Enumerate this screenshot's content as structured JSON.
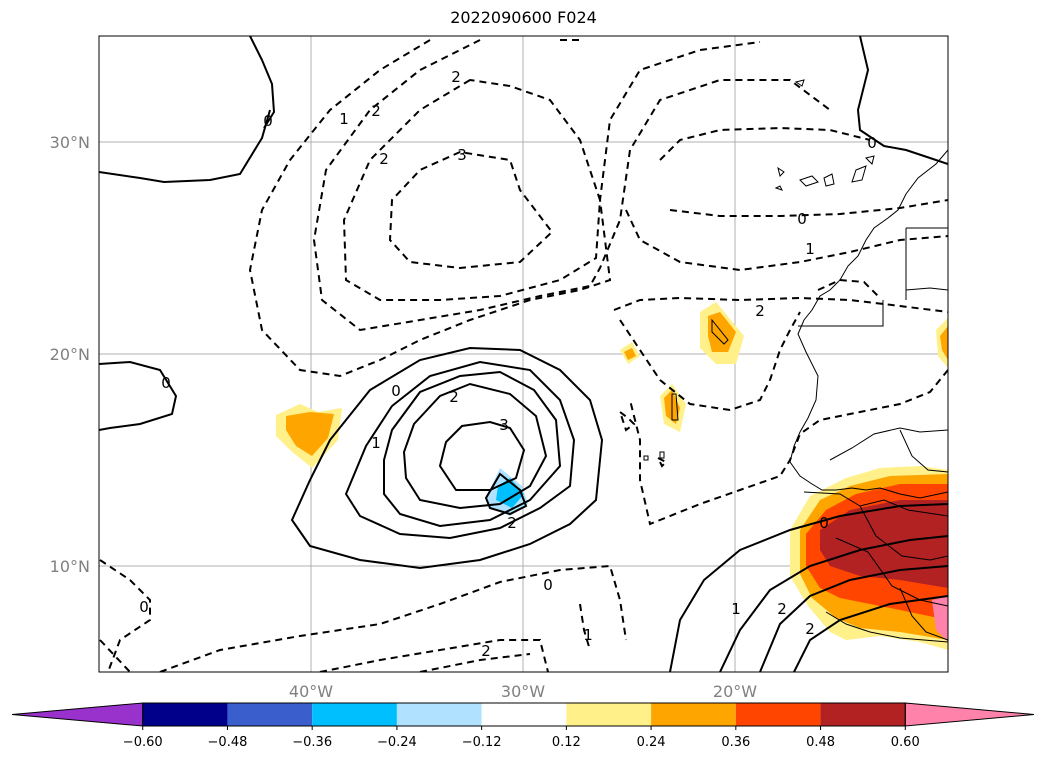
{
  "title": "2022090600 F024",
  "lat_labels": [
    "30°N",
    "20°N",
    "10°N"
  ],
  "lon_labels": [
    "40°W",
    "30°W",
    "20°W"
  ],
  "colorbar": {
    "colors": [
      "#9932cc",
      "#00008b",
      "#3a5fcd",
      "#00bfff",
      "#b0e2ff",
      "#ffffff",
      "#fff08a",
      "#ffa500",
      "#ff4500",
      "#b22222",
      "#ff82ab"
    ],
    "tick_labels": [
      "−0.60",
      "−0.48",
      "−0.36",
      "−0.24",
      "−0.12",
      "0.12",
      "0.24",
      "0.36",
      "0.48",
      "0.60"
    ]
  },
  "contour_labels": [
    {
      "text": "0"
    },
    {
      "text": "1"
    },
    {
      "text": "2"
    },
    {
      "text": "2"
    },
    {
      "text": "3"
    },
    {
      "text": "0"
    },
    {
      "text": "1"
    },
    {
      "text": "2"
    },
    {
      "text": "0"
    },
    {
      "text": "3"
    },
    {
      "text": "2"
    },
    {
      "text": "1"
    },
    {
      "text": "0"
    },
    {
      "text": "2"
    },
    {
      "text": "0"
    },
    {
      "text": "0"
    },
    {
      "text": "1"
    },
    {
      "text": "2"
    },
    {
      "text": "0"
    },
    {
      "text": "1"
    },
    {
      "text": "2"
    },
    {
      "text": "2"
    },
    {
      "text": "2"
    },
    {
      "text": "0"
    }
  ]
}
